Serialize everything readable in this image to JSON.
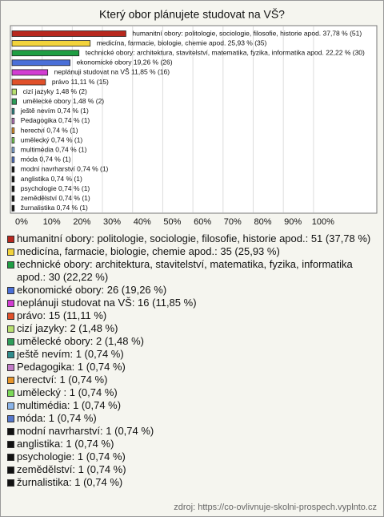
{
  "chart_data": {
    "type": "hbar",
    "title": "Který obor plánujete studovat na VŠ?",
    "categories": [
      "humanitní obory: politologie, sociologie, filosofie, historie apod.",
      "medicína, farmacie, biologie, chemie apod.",
      "technické obory: architektura, stavitelství, matematika, fyzika, informatika apod.",
      "ekonomické obory",
      "neplánuji studovat na VŠ",
      "právo",
      "cizí jazyky",
      "umělecké obory",
      "ještě nevím",
      "Pedagogika",
      "herectví",
      "umělecký ",
      "multimédia",
      "móda",
      "modní navrharství",
      "anglistika",
      "psychologie",
      "zemědělství",
      "žurnalistika"
    ],
    "values": [
      37.78,
      25.93,
      22.22,
      19.26,
      11.85,
      11.11,
      1.48,
      1.48,
      0.74,
      0.74,
      0.74,
      0.74,
      0.74,
      0.74,
      0.74,
      0.74,
      0.74,
      0.74,
      0.74
    ],
    "value_labels": [
      "humanitní obory: politologie, sociologie, filosofie, historie apod. 37,78 % (51)",
      "medicína, farmacie, biologie, chemie apod. 25,93 % (35)",
      "technické obory: architektura, stavitelství, matematika, fyzika, informatika apod. 22,22 % (30)",
      "ekonomické obory 19,26 % (26)",
      "neplánuji studovat na VŠ 11,85 % (16)",
      "právo 11,11 % (15)",
      "cizí jazyky 1,48 % (2)",
      "umělecké obory 1,48 % (2)",
      "ještě nevím 0,74 % (1)",
      "Pedagogika 0,74 % (1)",
      "herectví 0,74 % (1)",
      "umělecký  0,74 % (1)",
      "multimédia 0,74 % (1)",
      "móda 0,74 % (1)",
      "modní navrharství 0,74 % (1)",
      "anglistika 0,74 % (1)",
      "psychologie 0,74 % (1)",
      "zemědělství 0,74 % (1)",
      "žurnalistika 0,74 % (1)"
    ],
    "colors": [
      "#b8281e",
      "#f2d33c",
      "#1f9e43",
      "#4a6fd8",
      "#d23cd2",
      "#e0502a",
      "#b8e070",
      "#2e9e5a",
      "#2f8c8c",
      "#c27cc7",
      "#e8962a",
      "#7cd957",
      "#8ab4e8",
      "#5577cc",
      "#111111",
      "#111111",
      "#111111",
      "#111111",
      "#111111"
    ],
    "legend_labels": [
      "humanitní obory: politologie, sociologie, filosofie, historie apod.: 51 (37,78 %)",
      "medicína, farmacie, biologie, chemie apod.: 35 (25,93 %)",
      "technické obory: architektura, stavitelství, matematika, fyzika, informatika apod.: 30 (22,22 %)",
      "ekonomické obory: 26 (19,26 %)",
      "neplánuji studovat na VŠ: 16 (11,85 %)",
      "právo: 15 (11,11 %)",
      "cizí jazyky: 2 (1,48 %)",
      "umělecké obory: 2 (1,48 %)",
      "ještě nevím: 1 (0,74 %)",
      "Pedagogika: 1 (0,74 %)",
      "herectví: 1 (0,74 %)",
      "umělecký : 1 (0,74 %)",
      "multimédia: 1 (0,74 %)",
      "móda: 1 (0,74 %)",
      "modní navrharství: 1 (0,74 %)",
      "anglistika: 1 (0,74 %)",
      "psychologie: 1 (0,74 %)",
      "zemědělství: 1 (0,74 %)",
      "žurnalistika: 1 (0,74 %)"
    ],
    "xlim": [
      0,
      121
    ],
    "xticks": [
      {
        "value": 0,
        "label": "0%"
      },
      {
        "value": 10,
        "label": "10%"
      },
      {
        "value": 20,
        "label": "20%"
      },
      {
        "value": 30,
        "label": "30%"
      },
      {
        "value": 40,
        "label": "40%"
      },
      {
        "value": 50,
        "label": "50%"
      },
      {
        "value": 60,
        "label": "60%"
      },
      {
        "value": 70,
        "label": "70%"
      },
      {
        "value": 80,
        "label": "80%"
      },
      {
        "value": 90,
        "label": "90%"
      },
      {
        "value": 100,
        "label": "100%"
      }
    ],
    "grid": true,
    "source": "zdroj: https://co-ovlivnuje-skolni-prospech.vyplnto.cz"
  }
}
